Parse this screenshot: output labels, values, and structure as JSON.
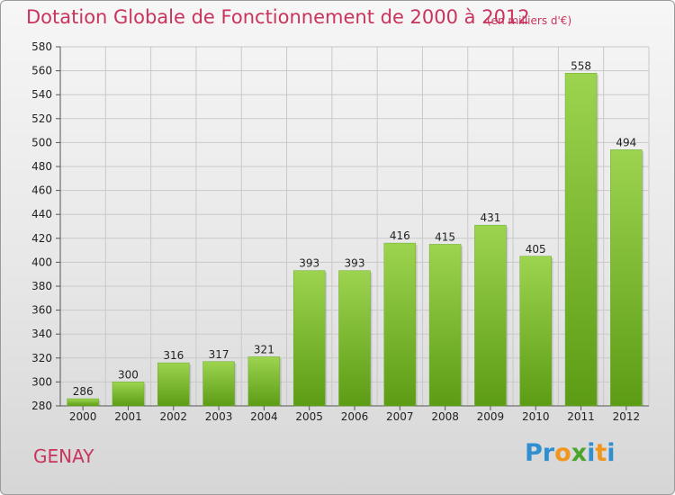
{
  "title": "Dotation Globale de Fonctionnement de 2000 à 2012",
  "subtitle": "(en milliers d'€)",
  "city": "GENAY",
  "logo": {
    "text": "Proxiti",
    "letters": [
      {
        "ch": "P",
        "color": "#2f8fd0"
      },
      {
        "ch": "r",
        "color": "#2f8fd0"
      },
      {
        "ch": "o",
        "color": "#f0961e"
      },
      {
        "ch": "x",
        "color": "#4aa52a"
      },
      {
        "ch": "i",
        "color": "#2f8fd0"
      },
      {
        "ch": "t",
        "color": "#f0961e"
      },
      {
        "ch": "i",
        "color": "#2f8fd0"
      }
    ]
  },
  "colors": {
    "title": "#c8345c",
    "bar_top": "#9dd44f",
    "bar_bottom": "#5c9c14",
    "grid": "#c9c9c9"
  },
  "chart_data": {
    "type": "bar",
    "title": "Dotation Globale de Fonctionnement de 2000 à 2012",
    "subtitle": "(en milliers d'€)",
    "xlabel": "",
    "ylabel": "",
    "categories": [
      "2000",
      "2001",
      "2002",
      "2003",
      "2004",
      "2005",
      "2006",
      "2007",
      "2008",
      "2009",
      "2010",
      "2011",
      "2012"
    ],
    "values": [
      286,
      300,
      316,
      317,
      321,
      393,
      393,
      416,
      415,
      431,
      405,
      558,
      494
    ],
    "ylim": [
      280,
      580
    ],
    "yticks": [
      280,
      300,
      320,
      340,
      360,
      380,
      400,
      420,
      440,
      460,
      480,
      500,
      520,
      540,
      560,
      580
    ],
    "grid": true,
    "legend": "none"
  }
}
